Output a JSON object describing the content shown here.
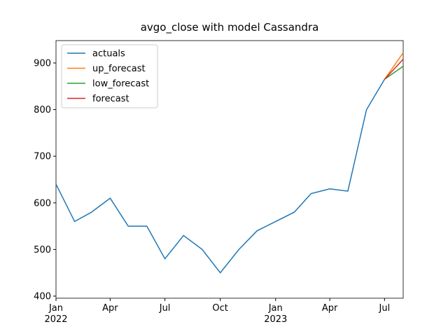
{
  "chart_data": {
    "type": "line",
    "title": "avgo_close with model Cassandra",
    "xlim": [
      "2022-01",
      "2023-08"
    ],
    "xticks": [
      {
        "value": "2022-01",
        "label": "Jan\n2022"
      },
      {
        "value": "2022-04",
        "label": "Apr"
      },
      {
        "value": "2022-07",
        "label": "Jul"
      },
      {
        "value": "2022-10",
        "label": "Oct"
      },
      {
        "value": "2023-01",
        "label": "Jan\n2023"
      },
      {
        "value": "2023-04",
        "label": "Apr"
      },
      {
        "value": "2023-07",
        "label": "Jul"
      }
    ],
    "ylim": [
      395.5,
      948
    ],
    "yticks": [
      400,
      500,
      600,
      700,
      800,
      900
    ],
    "legend": "upper left",
    "series": [
      {
        "name": "actuals",
        "color": "#1f77b4",
        "x": [
          "2022-01",
          "2022-02",
          "2022-03",
          "2022-04",
          "2022-05",
          "2022-06",
          "2022-07",
          "2022-08",
          "2022-09",
          "2022-10",
          "2022-11",
          "2022-12",
          "2023-01",
          "2023-02",
          "2023-03",
          "2023-04",
          "2023-05",
          "2023-06",
          "2023-07"
        ],
        "values": [
          640,
          560,
          580,
          610,
          550,
          550,
          480,
          530,
          500,
          450,
          500,
          540,
          560,
          580,
          620,
          630,
          625,
          800,
          865
        ]
      },
      {
        "name": "up_forecast",
        "color": "#ff7f0e",
        "x": [
          "2023-07",
          "2023-08"
        ],
        "values": [
          865,
          922
        ]
      },
      {
        "name": "low_forecast",
        "color": "#2ca02c",
        "x": [
          "2023-07",
          "2023-08"
        ],
        "values": [
          865,
          893
        ]
      },
      {
        "name": "forecast",
        "color": "#d62728",
        "x": [
          "2023-07",
          "2023-08"
        ],
        "values": [
          865,
          908
        ]
      }
    ]
  }
}
